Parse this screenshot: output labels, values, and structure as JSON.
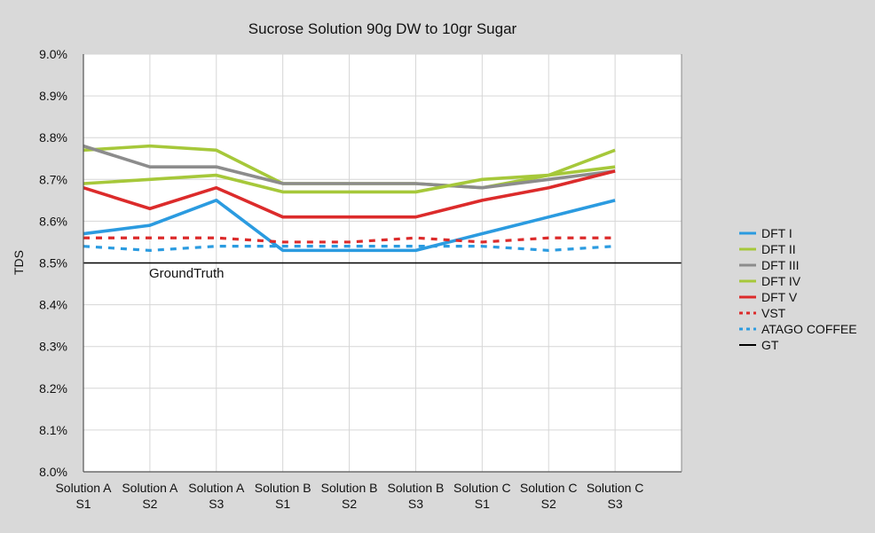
{
  "chart_data": {
    "type": "line",
    "title": "Sucrose Solution 90g DW to 10gr Sugar",
    "ylabel": "TDS",
    "xlabel": "",
    "ylim": [
      8.0,
      9.0
    ],
    "yticks": [
      "8.0%",
      "8.1%",
      "8.2%",
      "8.3%",
      "8.4%",
      "8.5%",
      "8.6%",
      "8.7%",
      "8.8%",
      "8.9%",
      "9.0%"
    ],
    "categories": [
      [
        "Solution A",
        "S1"
      ],
      [
        "Solution A",
        "S2"
      ],
      [
        "Solution A",
        "S3"
      ],
      [
        "Solution B",
        "S1"
      ],
      [
        "Solution B",
        "S2"
      ],
      [
        "Solution B",
        "S3"
      ],
      [
        "Solution C",
        "S1"
      ],
      [
        "Solution C",
        "S2"
      ],
      [
        "Solution C",
        "S3"
      ]
    ],
    "grid": true,
    "legend_position": "right",
    "annotation": "GroundTruth",
    "series": [
      {
        "name": "DFT I",
        "color": "#2b9be0",
        "dash": "solid",
        "values": [
          8.57,
          8.59,
          8.65,
          8.53,
          8.53,
          8.53,
          8.57,
          8.61,
          8.65
        ]
      },
      {
        "name": "DFT II",
        "color": "#a6c83a",
        "dash": "solid",
        "values": [
          8.77,
          8.78,
          8.77,
          8.69,
          8.69,
          8.69,
          8.68,
          8.71,
          8.77
        ]
      },
      {
        "name": "DFT  III",
        "color": "#8c8c8c",
        "dash": "solid",
        "values": [
          8.78,
          8.73,
          8.73,
          8.69,
          8.69,
          8.69,
          8.68,
          8.7,
          8.72
        ]
      },
      {
        "name": "DFT  IV",
        "color": "#a6c83a",
        "dash": "solid",
        "values": [
          8.69,
          8.7,
          8.71,
          8.67,
          8.67,
          8.67,
          8.7,
          8.71,
          8.73
        ]
      },
      {
        "name": "DFT V",
        "color": "#dc2b2b",
        "dash": "solid",
        "values": [
          8.68,
          8.63,
          8.68,
          8.61,
          8.61,
          8.61,
          8.65,
          8.68,
          8.72
        ]
      },
      {
        "name": "VST",
        "color": "#dc2b2b",
        "dash": "dashed",
        "values": [
          8.56,
          8.56,
          8.56,
          8.55,
          8.55,
          8.56,
          8.55,
          8.56,
          8.56
        ]
      },
      {
        "name": "ATAGO COFFEE",
        "color": "#2b9be0",
        "dash": "dashed",
        "values": [
          8.54,
          8.53,
          8.54,
          8.54,
          8.54,
          8.54,
          8.54,
          8.53,
          8.54
        ]
      },
      {
        "name": "GT",
        "color": "#000000",
        "dash": "solid",
        "values": [
          8.5,
          8.5,
          8.5,
          8.5,
          8.5,
          8.5,
          8.5,
          8.5,
          8.5
        ]
      }
    ]
  }
}
